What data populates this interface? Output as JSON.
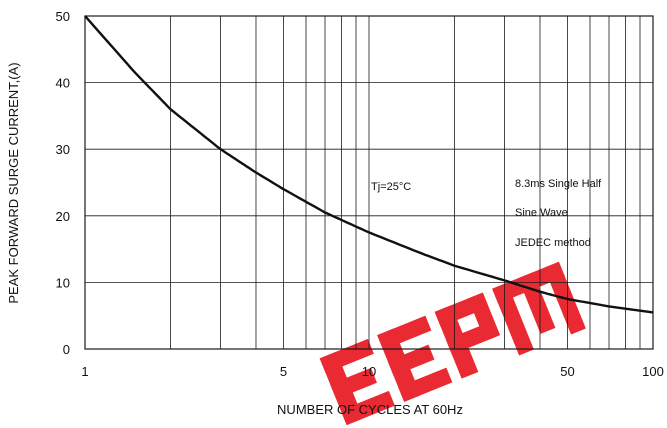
{
  "chart_data": {
    "type": "line",
    "xlabel": "NUMBER OF CYCLES AT 60Hz",
    "ylabel": "PEAK FORWARD SURGE CURRENT,(A)",
    "x_scale": "log",
    "xlim": [
      1,
      100
    ],
    "ylim": [
      0,
      50
    ],
    "x_ticks": [
      {
        "value": 1,
        "label": "1"
      },
      {
        "value": 5,
        "label": "5"
      },
      {
        "value": 10,
        "label": "10"
      },
      {
        "value": 50,
        "label": "50"
      },
      {
        "value": 100,
        "label": "100"
      }
    ],
    "y_ticks": [
      {
        "value": 0,
        "label": "0"
      },
      {
        "value": 10,
        "label": "10"
      },
      {
        "value": 20,
        "label": "20"
      },
      {
        "value": 30,
        "label": "30"
      },
      {
        "value": 40,
        "label": "40"
      },
      {
        "value": 50,
        "label": "50"
      }
    ],
    "x_gridlines": [
      1,
      2,
      3,
      4,
      5,
      6,
      7,
      8,
      9,
      10,
      20,
      30,
      40,
      50,
      60,
      70,
      80,
      90,
      100
    ],
    "y_gridlines": [
      0,
      10,
      20,
      30,
      40,
      50
    ],
    "grid": true,
    "series": [
      {
        "x": [
          1,
          1.5,
          2,
          3,
          4,
          5,
          7,
          10,
          15,
          20,
          30,
          40,
          50,
          70,
          100
        ],
        "y": [
          50,
          41.5,
          36,
          30,
          26.5,
          24,
          20.5,
          17.5,
          14.5,
          12.5,
          10.3,
          8.6,
          7.5,
          6.4,
          5.5
        ],
        "color": "#111111"
      }
    ],
    "annotations": [
      {
        "text": "Tj=25°C"
      },
      {
        "text": "8.3ms Single Half"
      },
      {
        "text": "Sine Wave"
      },
      {
        "text": "JEDEC method"
      }
    ],
    "watermark": "EEPM",
    "watermark_color": "#e8141c"
  }
}
